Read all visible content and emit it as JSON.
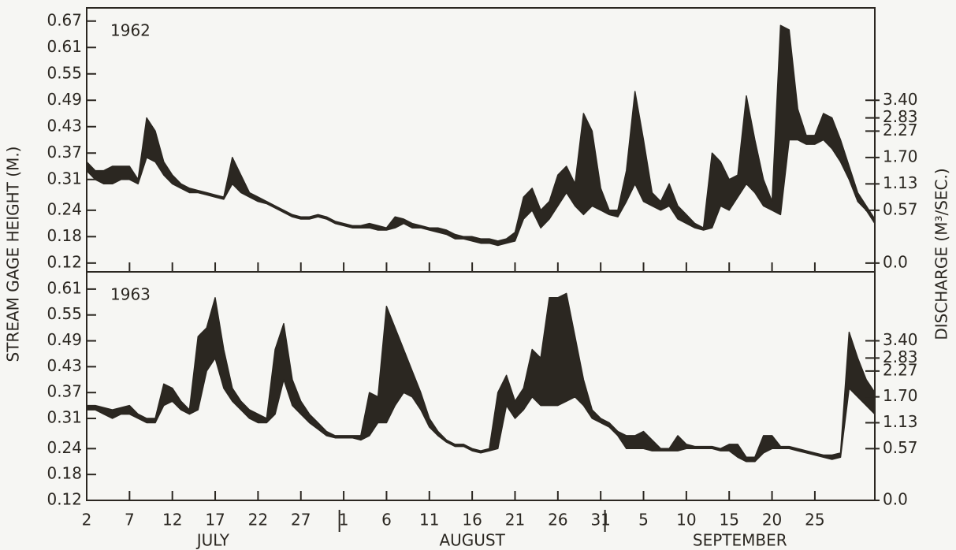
{
  "chart_data": [
    {
      "type": "range_area",
      "title": "1962",
      "ylabel": "STREAM GAGE HEIGHT (M.)",
      "y2label": "DISCHARGE (M³/SEC.)",
      "color": "#2b2721",
      "x": [
        2,
        3,
        4,
        5,
        6,
        7,
        8,
        9,
        10,
        11,
        12,
        13,
        14,
        15,
        16,
        17,
        18,
        19,
        20,
        21,
        22,
        23,
        24,
        25,
        26,
        27,
        28,
        29,
        30,
        31,
        32,
        33,
        34,
        35,
        36,
        37,
        38,
        39,
        40,
        41,
        42,
        43,
        44,
        45,
        46,
        47,
        48,
        49,
        50,
        51,
        52,
        53,
        54,
        55,
        56,
        57,
        58,
        59,
        60,
        61,
        62,
        63,
        64,
        65,
        66,
        67,
        68,
        69,
        70,
        71,
        72,
        73,
        74,
        75,
        76,
        77,
        78,
        79,
        80,
        81,
        82,
        83,
        84,
        85,
        86,
        87,
        88,
        89,
        90,
        91,
        92,
        93,
        94
      ],
      "high": [
        0.35,
        0.33,
        0.33,
        0.34,
        0.34,
        0.34,
        0.31,
        0.45,
        0.42,
        0.35,
        0.32,
        0.3,
        0.29,
        0.285,
        0.28,
        0.275,
        0.27,
        0.36,
        0.32,
        0.28,
        0.27,
        0.26,
        0.25,
        0.24,
        0.23,
        0.225,
        0.225,
        0.23,
        0.225,
        0.215,
        0.21,
        0.205,
        0.205,
        0.21,
        0.205,
        0.2,
        0.225,
        0.22,
        0.21,
        0.205,
        0.2,
        0.2,
        0.195,
        0.185,
        0.18,
        0.18,
        0.175,
        0.175,
        0.17,
        0.175,
        0.19,
        0.27,
        0.29,
        0.24,
        0.26,
        0.32,
        0.34,
        0.3,
        0.46,
        0.42,
        0.29,
        0.24,
        0.24,
        0.33,
        0.51,
        0.4,
        0.28,
        0.26,
        0.3,
        0.25,
        0.23,
        0.21,
        0.2,
        0.37,
        0.35,
        0.31,
        0.32,
        0.5,
        0.4,
        0.31,
        0.26,
        0.66,
        0.65,
        0.47,
        0.41,
        0.41,
        0.46,
        0.45,
        0.4,
        0.34,
        0.28,
        0.25,
        0.22
      ],
      "low": [
        0.33,
        0.31,
        0.3,
        0.3,
        0.31,
        0.31,
        0.3,
        0.36,
        0.35,
        0.32,
        0.3,
        0.29,
        0.28,
        0.28,
        0.275,
        0.27,
        0.265,
        0.3,
        0.28,
        0.27,
        0.26,
        0.255,
        0.245,
        0.235,
        0.225,
        0.22,
        0.22,
        0.225,
        0.22,
        0.21,
        0.205,
        0.2,
        0.2,
        0.2,
        0.195,
        0.195,
        0.2,
        0.21,
        0.2,
        0.2,
        0.195,
        0.19,
        0.185,
        0.175,
        0.175,
        0.17,
        0.165,
        0.165,
        0.16,
        0.165,
        0.17,
        0.22,
        0.24,
        0.2,
        0.22,
        0.25,
        0.28,
        0.25,
        0.23,
        0.25,
        0.24,
        0.23,
        0.225,
        0.26,
        0.3,
        0.26,
        0.25,
        0.24,
        0.25,
        0.22,
        0.21,
        0.2,
        0.195,
        0.2,
        0.25,
        0.24,
        0.27,
        0.3,
        0.28,
        0.25,
        0.24,
        0.23,
        0.4,
        0.4,
        0.39,
        0.39,
        0.4,
        0.38,
        0.35,
        0.31,
        0.26,
        0.24,
        0.21
      ],
      "xlim": [
        2,
        94
      ],
      "ylim": [
        0.1,
        0.7
      ],
      "yticks": [
        0.12,
        0.18,
        0.24,
        0.31,
        0.37,
        0.43,
        0.49,
        0.55,
        0.61,
        0.67
      ],
      "y2ticks": [
        {
          "value": 0,
          "label": "0.0"
        },
        0.57,
        1.13,
        {
          "value": 1.7,
          "label": "1.70"
        },
        2.27,
        2.83,
        {
          "value": 3.4,
          "label": "3.40"
        }
      ],
      "y2_stage": [
        0.12,
        0.24,
        0.3,
        0.36,
        0.42,
        0.45,
        0.49
      ]
    },
    {
      "type": "range_area",
      "title": "1963",
      "color": "#2b2721",
      "x": [
        2,
        3,
        4,
        5,
        6,
        7,
        8,
        9,
        10,
        11,
        12,
        13,
        14,
        15,
        16,
        17,
        18,
        19,
        20,
        21,
        22,
        23,
        24,
        25,
        26,
        27,
        28,
        29,
        30,
        31,
        32,
        33,
        34,
        35,
        36,
        37,
        38,
        39,
        40,
        41,
        42,
        43,
        44,
        45,
        46,
        47,
        48,
        49,
        50,
        51,
        52,
        53,
        54,
        55,
        56,
        57,
        58,
        59,
        60,
        61,
        62,
        63,
        64,
        65,
        66,
        67,
        68,
        69,
        70,
        71,
        72,
        73,
        74,
        75,
        76,
        77,
        78,
        79,
        80,
        81,
        82,
        83,
        84,
        85,
        86,
        87,
        88,
        89,
        90,
        91,
        92,
        93,
        94
      ],
      "high": [
        0.34,
        0.34,
        0.335,
        0.33,
        0.335,
        0.34,
        0.32,
        0.31,
        0.31,
        0.39,
        0.38,
        0.35,
        0.33,
        0.5,
        0.52,
        0.59,
        0.47,
        0.38,
        0.35,
        0.33,
        0.32,
        0.31,
        0.47,
        0.53,
        0.4,
        0.35,
        0.32,
        0.3,
        0.28,
        0.27,
        0.27,
        0.27,
        0.27,
        0.37,
        0.36,
        0.57,
        0.52,
        0.47,
        0.42,
        0.37,
        0.31,
        0.28,
        0.26,
        0.25,
        0.25,
        0.24,
        0.235,
        0.24,
        0.37,
        0.41,
        0.35,
        0.38,
        0.47,
        0.45,
        0.59,
        0.59,
        0.6,
        0.5,
        0.4,
        0.33,
        0.31,
        0.3,
        0.28,
        0.27,
        0.27,
        0.28,
        0.26,
        0.24,
        0.24,
        0.27,
        0.25,
        0.245,
        0.245,
        0.245,
        0.24,
        0.25,
        0.25,
        0.22,
        0.22,
        0.27,
        0.27,
        0.245,
        0.245,
        0.24,
        0.235,
        0.23,
        0.225,
        0.225,
        0.23,
        0.51,
        0.45,
        0.4,
        0.37
      ],
      "low": [
        0.33,
        0.33,
        0.32,
        0.31,
        0.32,
        0.32,
        0.31,
        0.3,
        0.3,
        0.34,
        0.35,
        0.33,
        0.32,
        0.33,
        0.42,
        0.45,
        0.38,
        0.35,
        0.33,
        0.31,
        0.3,
        0.3,
        0.32,
        0.4,
        0.34,
        0.32,
        0.3,
        0.285,
        0.27,
        0.265,
        0.265,
        0.265,
        0.26,
        0.27,
        0.3,
        0.3,
        0.34,
        0.37,
        0.36,
        0.33,
        0.29,
        0.27,
        0.255,
        0.245,
        0.245,
        0.235,
        0.23,
        0.235,
        0.24,
        0.34,
        0.31,
        0.33,
        0.36,
        0.34,
        0.34,
        0.34,
        0.35,
        0.36,
        0.34,
        0.31,
        0.3,
        0.29,
        0.27,
        0.24,
        0.24,
        0.24,
        0.235,
        0.235,
        0.235,
        0.235,
        0.24,
        0.24,
        0.24,
        0.24,
        0.235,
        0.235,
        0.22,
        0.21,
        0.21,
        0.23,
        0.24,
        0.24,
        0.24,
        0.235,
        0.23,
        0.225,
        0.22,
        0.215,
        0.22,
        0.38,
        0.36,
        0.34,
        0.32
      ],
      "xlim": [
        2,
        94
      ],
      "ylim": [
        0.12,
        0.65
      ],
      "yticks": [
        0.12,
        0.18,
        0.24,
        0.31,
        0.37,
        0.43,
        0.49,
        0.55,
        0.61
      ],
      "y2ticks": [
        {
          "value": 0,
          "label": "0.0"
        },
        0.57,
        1.13,
        {
          "value": 1.7,
          "label": "1.70"
        },
        2.27,
        2.83,
        {
          "value": 3.4,
          "label": "3.40"
        }
      ],
      "y2_stage": [
        0.12,
        0.24,
        0.3,
        0.36,
        0.42,
        0.45,
        0.49
      ],
      "xticks": [
        2,
        7,
        12,
        17,
        22,
        27,
        {
          "value": 32,
          "label": "1"
        },
        {
          "value": 37,
          "label": "6"
        },
        {
          "value": 42,
          "label": "11"
        },
        {
          "value": 47,
          "label": "16"
        },
        {
          "value": 52,
          "label": "21"
        },
        {
          "value": 57,
          "label": "26"
        },
        {
          "value": 62,
          "label": "31"
        },
        {
          "value": 67,
          "label": "5"
        },
        {
          "value": 72,
          "label": "10"
        },
        {
          "value": 77,
          "label": "15"
        },
        {
          "value": 82,
          "label": "20"
        },
        {
          "value": 87,
          "label": "25"
        }
      ],
      "months": [
        "JULY",
        "AUGUST",
        "SEPTEMBER"
      ]
    }
  ]
}
